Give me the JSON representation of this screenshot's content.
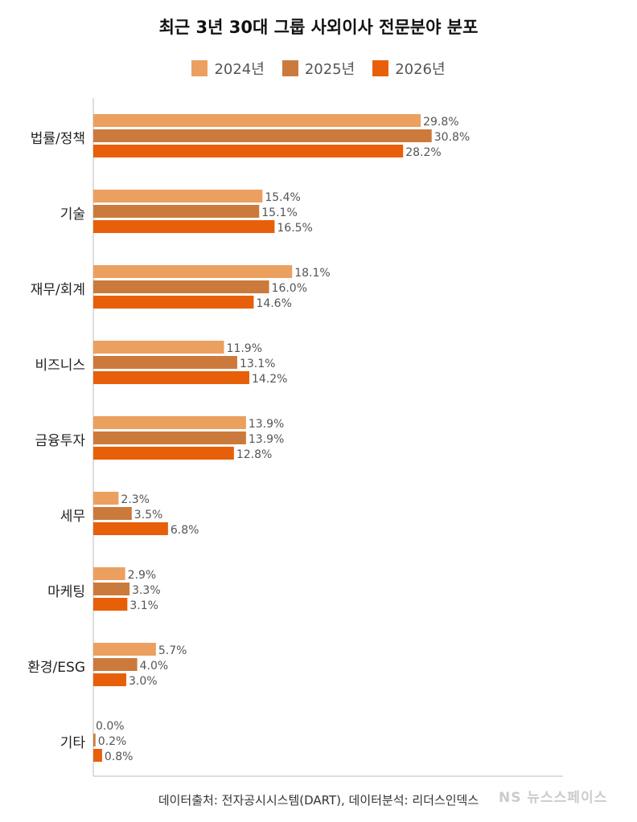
{
  "chart_data": {
    "type": "bar",
    "orientation": "horizontal",
    "title": "최근 3년 30대 그룹 사외이사 전문분야 분포",
    "categories": [
      "법률/정책",
      "기술",
      "재무/회계",
      "비즈니스",
      "금융투자",
      "세무",
      "마케팅",
      "환경/ESG",
      "기타"
    ],
    "series": [
      {
        "name": "2024년",
        "color": "#EBA060",
        "values": [
          29.8,
          15.4,
          18.1,
          11.9,
          13.9,
          2.3,
          2.9,
          5.7,
          0.0
        ],
        "labels": [
          "29.8%",
          "15.4%",
          "18.1%",
          "11.9%",
          "13.9%",
          "2.3%",
          "2.9%",
          "5.7%",
          "0.0%"
        ]
      },
      {
        "name": "2025년",
        "color": "#CC7A3C",
        "values": [
          30.8,
          15.1,
          16.0,
          13.1,
          13.9,
          3.5,
          3.3,
          4.0,
          0.2
        ],
        "labels": [
          "30.8%",
          "15.1%",
          "16.0%",
          "13.1%",
          "13.9%",
          "3.5%",
          "3.3%",
          "4.0%",
          "0.2%"
        ]
      },
      {
        "name": "2026년",
        "color": "#E85F0A",
        "values": [
          28.2,
          16.5,
          14.6,
          14.2,
          12.8,
          6.8,
          3.1,
          3.0,
          0.8
        ],
        "labels": [
          "28.2%",
          "16.5%",
          "14.6%",
          "14.2%",
          "12.8%",
          "6.8%",
          "3.1%",
          "3.0%",
          "0.8%"
        ]
      }
    ],
    "xlim": [
      0,
      32
    ],
    "grid": false,
    "legend_position": "top"
  },
  "footer": "데이터출처: 전자공시시스템(DART), 데이터분석: 리더스인덱스",
  "watermark": "NS 뉴스스페이스"
}
